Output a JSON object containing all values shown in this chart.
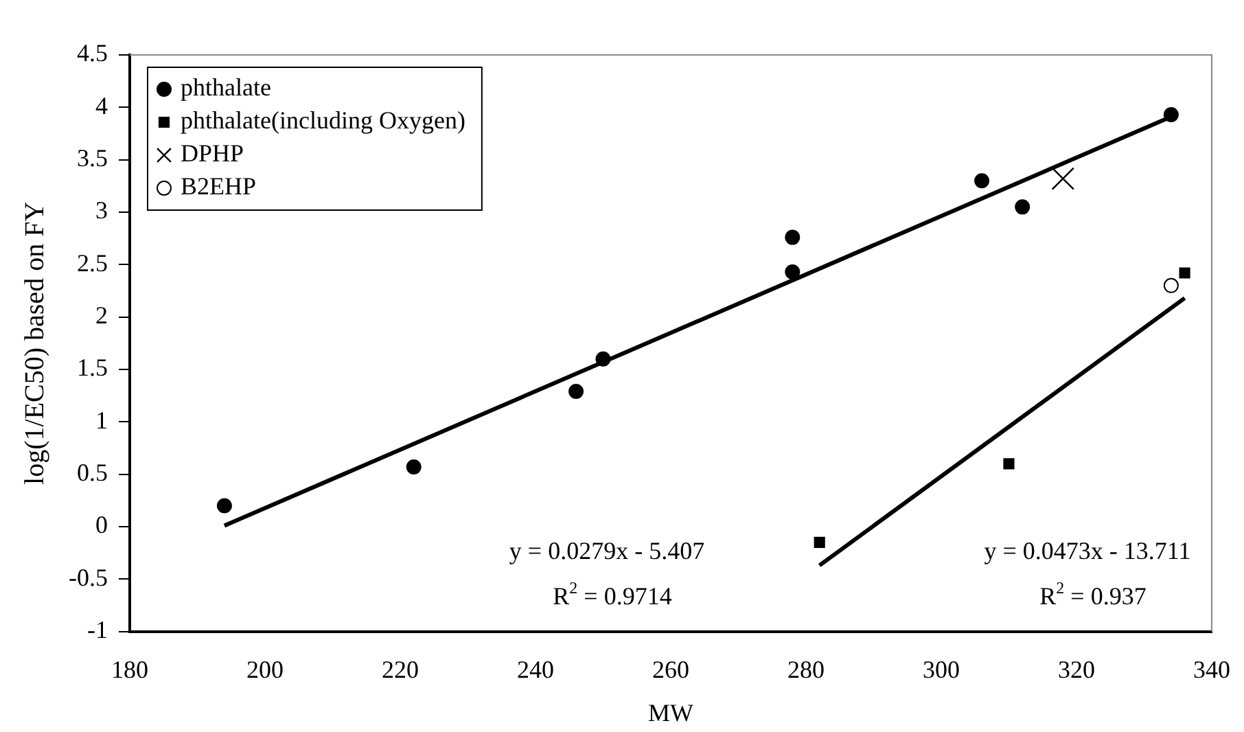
{
  "chart_data": {
    "type": "scatter",
    "xlabel": "MW",
    "ylabel": "log(1/EC50) based on FY",
    "series": [
      {
        "name": "phthalate",
        "color": "#000000",
        "marker": "circle",
        "x": [
          194,
          222,
          246,
          250,
          278,
          278,
          306,
          312,
          334
        ],
        "values": [
          0.2,
          0.57,
          1.29,
          1.6,
          2.43,
          2.76,
          3.3,
          3.05,
          3.93
        ]
      },
      {
        "name": "phthalate(including Oxygen)",
        "color": "#000000",
        "marker": "square",
        "x": [
          282,
          310,
          336
        ],
        "values": [
          -0.15,
          0.6,
          2.42
        ]
      },
      {
        "name": "DPHP",
        "color": "#000000",
        "marker": "cross",
        "x": [
          318
        ],
        "values": [
          3.32
        ]
      },
      {
        "name": "B2EHP",
        "color": "#ffffff",
        "marker": "circle",
        "x": [
          334
        ],
        "values": [
          2.3
        ]
      },
      {
        "type": "line",
        "color": "#000000",
        "marker": "none",
        "x": [
          194,
          334
        ],
        "values": [
          0.01,
          3.91
        ]
      },
      {
        "type": "line",
        "color": "#000000",
        "marker": "none",
        "x": [
          282,
          336
        ],
        "values": [
          -0.37,
          2.18
        ]
      }
    ],
    "xlim": [
      180,
      340
    ],
    "xticks": [
      180,
      200,
      220,
      240,
      260,
      280,
      300,
      320,
      340
    ],
    "ylim": [
      -1,
      4.5
    ],
    "yticks": [
      -1,
      -0.5,
      0,
      0.5,
      1,
      1.5,
      2,
      2.5,
      3,
      3.5,
      4,
      4.5
    ],
    "grid": false,
    "legend": "top left",
    "annotations": [
      "y = 0.0279x - 5.407",
      "R$^{2}$ = 0.9714",
      "y = 0.0473x - 13.711",
      "R$^{2}$ = 0.937"
    ]
  }
}
